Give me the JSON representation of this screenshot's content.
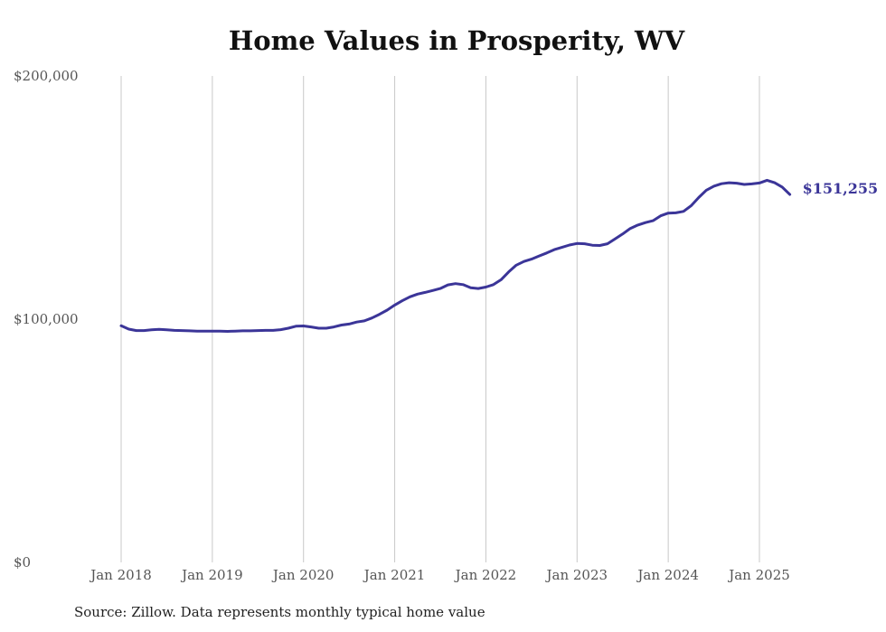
{
  "title": "Home Values in Prosperity, WV",
  "source": "Source: Zillow. Data represents monthly typical home value",
  "colors": {
    "line": "#3b3598",
    "grid": "#c8c8c8",
    "end_label": "#3b3598"
  },
  "chart_data": {
    "type": "line",
    "title": "Home Values in Prosperity, WV",
    "xlabel": "",
    "ylabel": "",
    "ylim": [
      0,
      200000
    ],
    "y_ticks": [
      0,
      100000,
      200000
    ],
    "y_tick_labels": [
      "$0",
      "$100,000",
      "$200,000"
    ],
    "x_ticks": [
      "2018-01",
      "2019-01",
      "2020-01",
      "2021-01",
      "2022-01",
      "2023-01",
      "2024-01",
      "2025-01"
    ],
    "x_tick_labels": [
      "Jan 2018",
      "Jan 2019",
      "Jan 2020",
      "Jan 2021",
      "Jan 2022",
      "Jan 2023",
      "Jan 2024",
      "Jan 2025"
    ],
    "grid": "vertical lines at x ticks",
    "end_label": "$151,255",
    "series": [
      {
        "x": [
          "2018-01",
          "2018-02",
          "2018-03",
          "2018-04",
          "2018-05",
          "2018-06",
          "2018-07",
          "2018-08",
          "2018-09",
          "2018-10",
          "2018-11",
          "2018-12",
          "2019-01",
          "2019-02",
          "2019-03",
          "2019-04",
          "2019-05",
          "2019-06",
          "2019-07",
          "2019-08",
          "2019-09",
          "2019-10",
          "2019-11",
          "2019-12",
          "2020-01",
          "2020-02",
          "2020-03",
          "2020-04",
          "2020-05",
          "2020-06",
          "2020-07",
          "2020-08",
          "2020-09",
          "2020-10",
          "2020-11",
          "2020-12",
          "2021-01",
          "2021-02",
          "2021-03",
          "2021-04",
          "2021-05",
          "2021-06",
          "2021-07",
          "2021-08",
          "2021-09",
          "2021-10",
          "2021-11",
          "2021-12",
          "2022-01",
          "2022-02",
          "2022-03",
          "2022-04",
          "2022-05",
          "2022-06",
          "2022-07",
          "2022-08",
          "2022-09",
          "2022-10",
          "2022-11",
          "2022-12",
          "2023-01",
          "2023-02",
          "2023-03",
          "2023-04",
          "2023-05",
          "2023-06",
          "2023-07",
          "2023-08",
          "2023-09",
          "2023-10",
          "2023-11",
          "2023-12",
          "2024-01",
          "2024-02",
          "2024-03",
          "2024-04",
          "2024-05",
          "2024-06",
          "2024-07",
          "2024-08",
          "2024-09",
          "2024-10",
          "2024-11",
          "2024-12",
          "2025-01",
          "2025-02",
          "2025-03",
          "2025-04",
          "2025-05"
        ],
        "values": [
          97300,
          95900,
          95300,
          95300,
          95600,
          95800,
          95600,
          95400,
          95300,
          95200,
          95100,
          95100,
          95100,
          95100,
          95000,
          95100,
          95200,
          95200,
          95300,
          95400,
          95400,
          95700,
          96300,
          97100,
          97200,
          96800,
          96300,
          96300,
          96800,
          97600,
          98000,
          98800,
          99300,
          100500,
          102000,
          103700,
          105800,
          107600,
          109200,
          110300,
          111000,
          111800,
          112600,
          114100,
          114600,
          114200,
          112900,
          112600,
          113200,
          114200,
          116200,
          119400,
          122200,
          123700,
          124700,
          126000,
          127200,
          128600,
          129500,
          130500,
          131100,
          131000,
          130400,
          130300,
          131000,
          133000,
          135000,
          137300,
          138700,
          139700,
          140500,
          142500,
          143600,
          143700,
          144300,
          146600,
          150000,
          153000,
          154700,
          155700,
          156100,
          155900,
          155400,
          155600,
          156000,
          157100,
          156100,
          154300,
          151255
        ]
      }
    ]
  }
}
